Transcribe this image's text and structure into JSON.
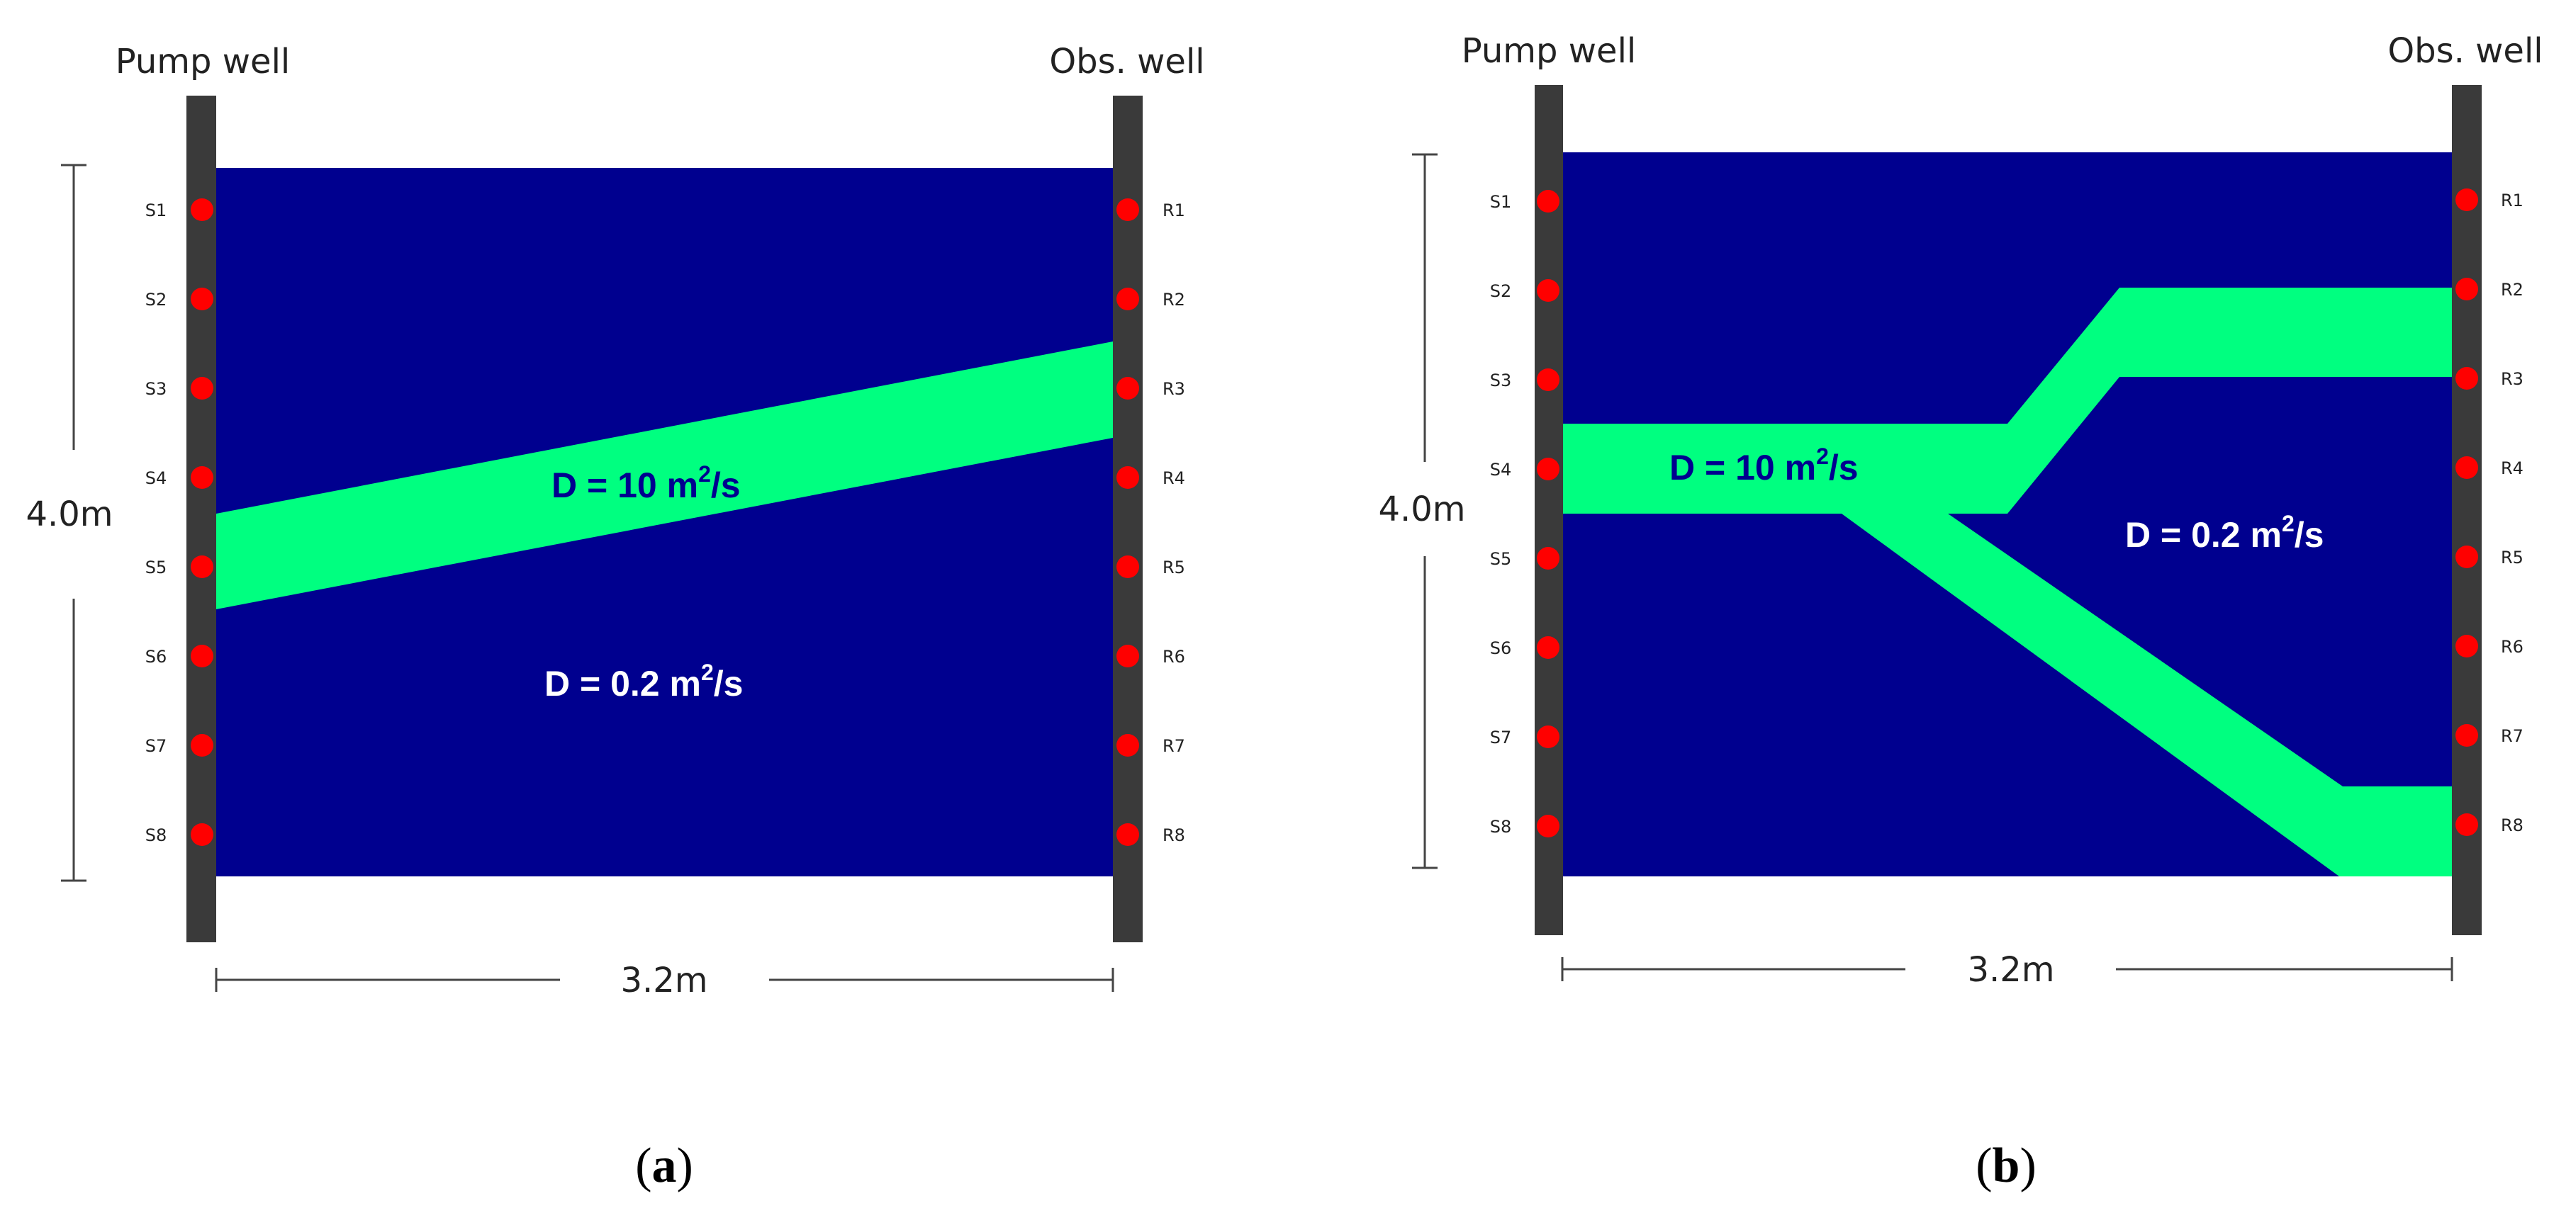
{
  "colors": {
    "low_d_zone": "#00008F",
    "high_d_zone": "#00FF80",
    "well": "#3A3A3A",
    "sensor": "#FF0000",
    "dim_line": "#444444",
    "label_on_green": "#00008F",
    "label_on_blue": "#FFFFFF"
  },
  "panels": [
    {
      "caption": {
        "open": "(",
        "letter": "a",
        "close": ")"
      },
      "pump_well_label": "Pump well",
      "obs_well_label": "Obs. well",
      "source_labels": [
        "S1",
        "S2",
        "S3",
        "S4",
        "S5",
        "S6",
        "S7",
        "S8"
      ],
      "receiver_labels": [
        "R1",
        "R2",
        "R3",
        "R4",
        "R5",
        "R6",
        "R7",
        "R8"
      ],
      "height_label": "4.0m",
      "width_label": "3.2m",
      "high_d_label": {
        "prefix": "D = 10 m",
        "exp": "2",
        "suffix": "/s"
      },
      "low_d_label": {
        "prefix": "D = 0.2 m",
        "exp": "2",
        "suffix": "/s"
      }
    },
    {
      "caption": {
        "open": "(",
        "letter": "b",
        "close": ")"
      },
      "pump_well_label": "Pump well",
      "obs_well_label": "Obs. well",
      "source_labels": [
        "S1",
        "S2",
        "S3",
        "S4",
        "S5",
        "S6",
        "S7",
        "S8"
      ],
      "receiver_labels": [
        "R1",
        "R2",
        "R3",
        "R4",
        "R5",
        "R6",
        "R7",
        "R8"
      ],
      "height_label": "4.0m",
      "width_label": "3.2m",
      "high_d_label": {
        "prefix": "D = 10 m",
        "exp": "2",
        "suffix": "/s"
      },
      "low_d_label": {
        "prefix": "D = 0.2 m",
        "exp": "2",
        "suffix": "/s"
      }
    }
  ]
}
